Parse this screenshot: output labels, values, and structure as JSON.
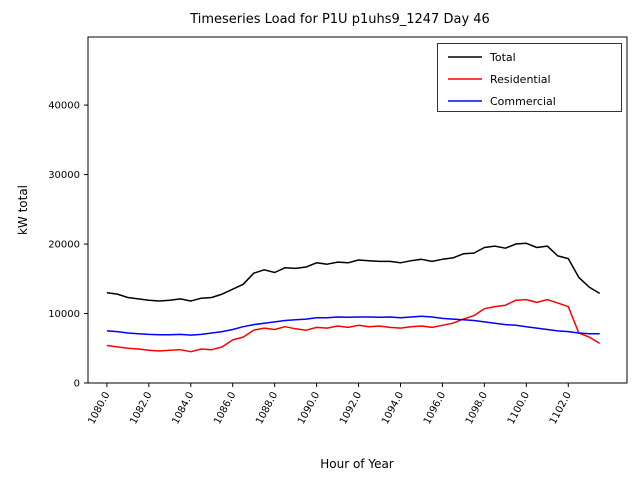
{
  "chart_data": {
    "type": "line",
    "title": "Timeseries Load for P1U p1uhs9_1247  Day 46",
    "xlabel": "Hour of Year",
    "ylabel": "kW total",
    "xlim": [
      1079.1,
      1104.8
    ],
    "ylim": [
      0,
      49800
    ],
    "xticks": [
      1080,
      1082,
      1084,
      1086,
      1088,
      1090,
      1092,
      1094,
      1096,
      1098,
      1100,
      1102
    ],
    "yticks": [
      0,
      10000,
      20000,
      30000,
      40000
    ],
    "grid": false,
    "legend_position": "upper right",
    "x": [
      1080.0,
      1080.5,
      1081.0,
      1081.5,
      1082.0,
      1082.5,
      1083.0,
      1083.5,
      1084.0,
      1084.5,
      1085.0,
      1085.5,
      1086.0,
      1086.5,
      1087.0,
      1087.5,
      1088.0,
      1088.5,
      1089.0,
      1089.5,
      1090.0,
      1090.5,
      1091.0,
      1091.5,
      1092.0,
      1092.5,
      1093.0,
      1093.5,
      1094.0,
      1094.5,
      1095.0,
      1095.5,
      1096.0,
      1096.5,
      1097.0,
      1097.5,
      1098.0,
      1098.5,
      1099.0,
      1099.5,
      1100.0,
      1100.5,
      1101.0,
      1101.5,
      1102.0,
      1102.5,
      1103.0,
      1103.5
    ],
    "series": [
      {
        "name": "Total",
        "color": "#000000",
        "values": [
          13000,
          12800,
          12300,
          12100,
          11900,
          11800,
          11900,
          12100,
          11800,
          12200,
          12300,
          12800,
          13500,
          14200,
          15800,
          16300,
          15900,
          16600,
          16500,
          16700,
          17300,
          17100,
          17400,
          17300,
          17700,
          17600,
          17500,
          17500,
          17300,
          17600,
          17800,
          17500,
          17800,
          18000,
          18600,
          18700,
          19500,
          19700,
          19400,
          20000,
          20100,
          19500,
          19700,
          18300,
          17900,
          15200,
          13800,
          12900
        ]
      },
      {
        "name": "Residential",
        "color": "#ff0000",
        "values": [
          5400,
          5200,
          5000,
          4900,
          4700,
          4600,
          4700,
          4800,
          4500,
          4900,
          4800,
          5200,
          6200,
          6600,
          7600,
          7900,
          7700,
          8100,
          7800,
          7600,
          8000,
          7900,
          8200,
          8000,
          8300,
          8100,
          8200,
          8000,
          7900,
          8100,
          8200,
          8000,
          8300,
          8600,
          9200,
          9700,
          10700,
          11000,
          11200,
          11900,
          12000,
          11600,
          12000,
          11500,
          11000,
          7200,
          6600,
          5700
        ]
      },
      {
        "name": "Commercial",
        "color": "#0000ff",
        "values": [
          7500,
          7400,
          7200,
          7100,
          7000,
          6950,
          6950,
          7000,
          6900,
          7000,
          7200,
          7400,
          7700,
          8100,
          8400,
          8600,
          8800,
          9000,
          9100,
          9200,
          9400,
          9400,
          9500,
          9450,
          9500,
          9500,
          9450,
          9500,
          9400,
          9500,
          9600,
          9500,
          9300,
          9200,
          9100,
          9000,
          8800,
          8600,
          8400,
          8300,
          8100,
          7900,
          7700,
          7500,
          7400,
          7200,
          7100,
          7100
        ]
      }
    ]
  }
}
